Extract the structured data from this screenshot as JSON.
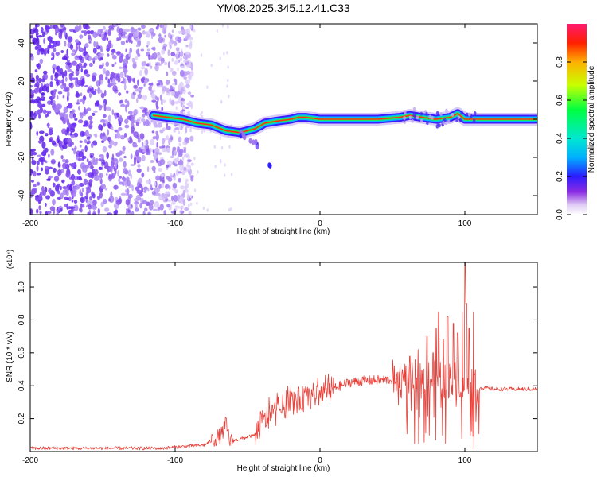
{
  "title": "YM08.2025.345.12.41.C33",
  "chart_data": [
    {
      "type": "heatmap",
      "name": "spectrogram",
      "xlabel": "Height of straight line (km)",
      "ylabel": "Frequency (Hz)",
      "xlim": [
        -200,
        150
      ],
      "ylim": [
        -50,
        50
      ],
      "xticks": [
        -200,
        -100,
        0,
        100
      ],
      "xtick_labels": [
        "-200",
        "-100",
        "0",
        "100"
      ],
      "yticks": [
        -40,
        -20,
        0,
        20,
        40
      ],
      "ytick_labels": [
        "-40",
        "-20",
        "0",
        "20",
        "40"
      ],
      "colorbar": {
        "label": "Normalized spectral amplitude",
        "range": [
          0,
          1
        ],
        "ticks": [
          0,
          0.2,
          0.4,
          0.6,
          0.8
        ],
        "tick_labels": [
          "0.0",
          "0.2",
          "0.4",
          "0.6",
          "0.8"
        ]
      },
      "ridge": {
        "x": [
          -115,
          -105,
          -95,
          -85,
          -75,
          -65,
          -55,
          -45,
          -38,
          -30,
          -20,
          -15,
          -10,
          0,
          20,
          40,
          55,
          62,
          70,
          80,
          90,
          95,
          100,
          105,
          150
        ],
        "f": [
          2,
          1,
          0,
          -2,
          -3,
          -6,
          -7,
          -5,
          -2,
          -1,
          0,
          1,
          1,
          0,
          0,
          0,
          1,
          2,
          1,
          0,
          1,
          3,
          0,
          0,
          0
        ]
      },
      "branch": {
        "x": [
          -55,
          -45,
          -38,
          -33
        ],
        "f": [
          -7,
          -12,
          -18,
          -27
        ]
      },
      "noise_region_xmax": -100
    },
    {
      "type": "line",
      "name": "snr",
      "xlabel": "Height of straight line (km)",
      "ylabel": "SNR (10 * v/v)",
      "y_multiplier": "(x10⁴)",
      "xlim": [
        -200,
        150
      ],
      "ylim": [
        0,
        1.15
      ],
      "xticks": [
        -200,
        -100,
        0,
        100
      ],
      "xtick_labels": [
        "-200",
        "-100",
        "0",
        "100"
      ],
      "yticks": [
        0.2,
        0.4,
        0.6,
        0.8,
        1.0
      ],
      "ytick_labels": [
        "0.2",
        "0.4",
        "0.6",
        "0.8",
        "1.0"
      ],
      "series_color": "#e8413a",
      "envelope": {
        "x": [
          -200,
          -110,
          -80,
          -68,
          -65,
          -62,
          -45,
          -40,
          -20,
          0,
          20,
          30,
          55,
          60,
          70,
          80,
          90,
          95,
          100,
          103,
          105,
          108,
          110,
          120,
          150
        ],
        "y": [
          0.02,
          0.02,
          0.04,
          0.1,
          0.17,
          0.06,
          0.1,
          0.18,
          0.3,
          0.35,
          0.42,
          0.43,
          0.44,
          0.44,
          0.44,
          0.44,
          0.44,
          0.44,
          0.44,
          0.43,
          0.42,
          0.4,
          0.39,
          0.38,
          0.38
        ]
      },
      "spikes": [
        {
          "x": 55,
          "y": 0.52
        },
        {
          "x": 62,
          "y": 0.58
        },
        {
          "x": 68,
          "y": 0.62
        },
        {
          "x": 74,
          "y": 0.7
        },
        {
          "x": 78,
          "y": 0.6
        },
        {
          "x": 80,
          "y": 0.75
        },
        {
          "x": 82,
          "y": 0.85
        },
        {
          "x": 85,
          "y": 0.68
        },
        {
          "x": 88,
          "y": 0.82
        },
        {
          "x": 92,
          "y": 0.78
        },
        {
          "x": 95,
          "y": 0.72
        },
        {
          "x": 98,
          "y": 0.85
        },
        {
          "x": 100,
          "y": 1.15
        },
        {
          "x": 101,
          "y": 0.9
        },
        {
          "x": 103,
          "y": 0.75
        },
        {
          "x": 106,
          "y": 0.85
        }
      ]
    }
  ]
}
